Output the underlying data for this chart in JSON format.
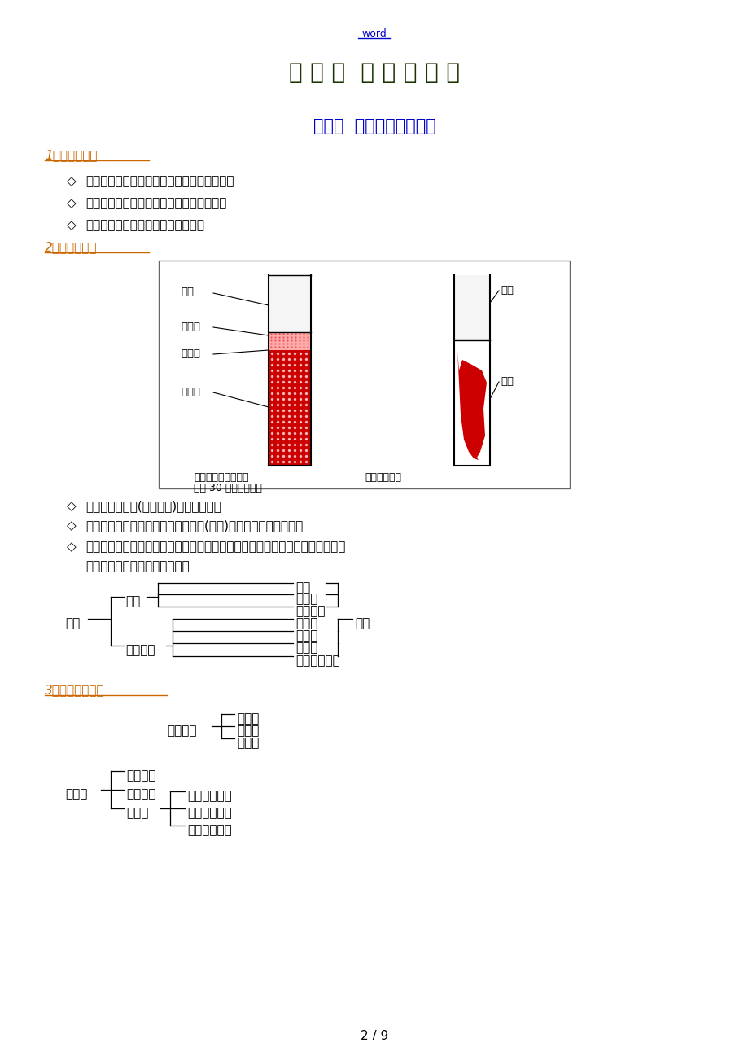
{
  "bg_color": "#ffffff",
  "header_word": "word",
  "header_word_color": "#0000cc",
  "chapter_title": "第 一 章  血 液 学 基 础",
  "chapter_title_color": "#1a3300",
  "section_title": "第一节  血液的功能和组成",
  "section_title_color": "#0000cc",
  "numbered_heading_color": "#cc6600",
  "body_text_color": "#000000",
  "page_number": "2 / 9",
  "heading1": "1．血液的功能",
  "heading2": "2．血液的组成",
  "heading3": "3．血液细胞构成",
  "bullet1": "机体各组织器官营养成分和代谢产物的载体。",
  "bullet2": "人体所需水分、氧与排出二氧化碳的载体。",
  "bullet3": "参与人体免疫功能，防止疾病侵袭。",
  "below1": "血液由有形成分(血细胞等)和血浆组成。",
  "below2": "血清：血液自然凝固，除去固体局部(血饼)后所获得的液体局部。",
  "below3": "血浆：血液经抗凝处理，在离心作用后获得的清液局部。除血清所含成分外，还",
  "below3b": "包括蛋白质、凝固因子等成分。"
}
